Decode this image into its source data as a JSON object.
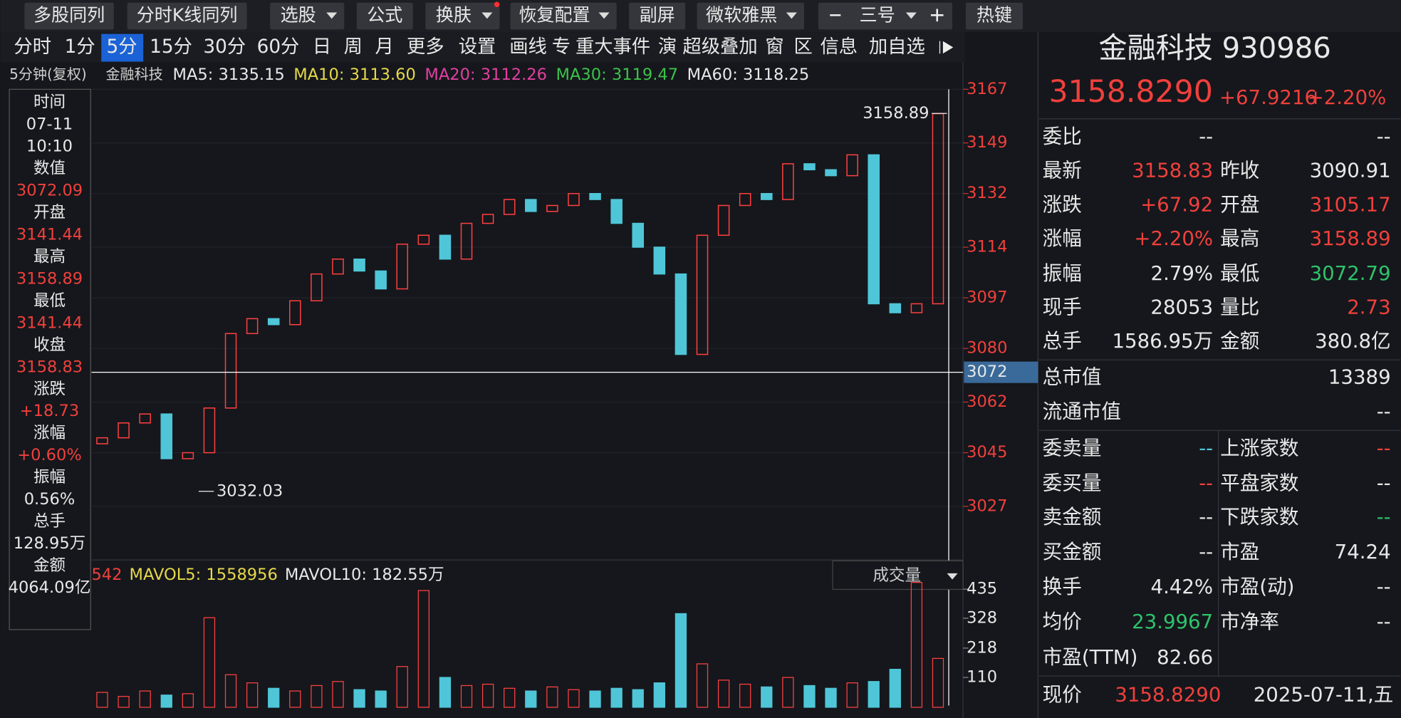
{
  "toolbar": [
    "多股同列",
    "分时K线同列",
    "选股",
    "公式",
    "换肤",
    "恢复配置",
    "副屏",
    "微软雅黑",
    "三号",
    "热键"
  ],
  "tabs": [
    "分时",
    "1分",
    "5分",
    "15分",
    "30分",
    "60分",
    "日",
    "周",
    "月",
    "更多",
    "设置",
    "画线",
    "专",
    "重大事件",
    "演",
    "超级叠加",
    "窗",
    "区",
    "信息",
    "加自选"
  ],
  "ma_header": {
    "period": "5分钟(复权)",
    "name": "金融科技",
    "ma": [
      {
        "text": "MA5: 3135.15",
        "color": "#e8e8e8"
      },
      {
        "text": "MA10: 3113.60",
        "color": "#e6d84a"
      },
      {
        "text": "MA20: 3112.26",
        "color": "#e040a0"
      },
      {
        "text": "MA30: 3119.47",
        "color": "#3cc24a"
      },
      {
        "text": "MA60: 3118.25",
        "color": "#e8e8e8"
      }
    ]
  },
  "info_panel": [
    {
      "text": "时间",
      "color": "#e8e8e8"
    },
    {
      "text": "07-11",
      "color": "#e8e8e8"
    },
    {
      "text": "10:10",
      "color": "#e8e8e8"
    },
    {
      "text": "数值",
      "color": "#e8e8e8"
    },
    {
      "text": "3072.09",
      "color": "#f0403c"
    },
    {
      "text": "开盘",
      "color": "#e8e8e8"
    },
    {
      "text": "3141.44",
      "color": "#f0403c"
    },
    {
      "text": "最高",
      "color": "#e8e8e8"
    },
    {
      "text": "3158.89",
      "color": "#f0403c"
    },
    {
      "text": "最低",
      "color": "#e8e8e8"
    },
    {
      "text": "3141.44",
      "color": "#f0403c"
    },
    {
      "text": "收盘",
      "color": "#e8e8e8"
    },
    {
      "text": "3158.83",
      "color": "#f0403c"
    },
    {
      "text": "涨跌",
      "color": "#e8e8e8"
    },
    {
      "text": "+18.73",
      "color": "#f0403c"
    },
    {
      "text": "涨幅",
      "color": "#e8e8e8"
    },
    {
      "text": "+0.60%",
      "color": "#f0403c"
    },
    {
      "text": "振幅",
      "color": "#e8e8e8"
    },
    {
      "text": "0.56%",
      "color": "#e8e8e8"
    },
    {
      "text": "总手",
      "color": "#e8e8e8"
    },
    {
      "text": "128.95万",
      "color": "#e8e8e8"
    },
    {
      "text": "金额",
      "color": "#e8e8e8"
    },
    {
      "text": "4064.09亿",
      "color": "#e8e8e8"
    }
  ],
  "chart_data": {
    "type": "candlestick",
    "ylim": [
      3009,
      3167
    ],
    "yticks": [
      3167,
      3149,
      3132,
      3114,
      3097,
      3080,
      3062,
      3045,
      3027
    ],
    "open": [
      3048,
      3050,
      3055,
      3058,
      3043,
      3045,
      3060,
      3085,
      3090,
      3088,
      3096,
      3105,
      3110,
      3106,
      3100,
      3115,
      3118,
      3110,
      3122,
      3125,
      3130,
      3126,
      3128,
      3132,
      3130,
      3122,
      3114,
      3105,
      3078,
      3118,
      3128,
      3132,
      3130,
      3142,
      3140,
      3138,
      3145,
      3095,
      3092,
      3095
    ],
    "close": [
      3050,
      3055,
      3058,
      3043,
      3045,
      3060,
      3085,
      3090,
      3088,
      3096,
      3105,
      3110,
      3106,
      3100,
      3115,
      3118,
      3110,
      3122,
      3125,
      3130,
      3126,
      3128,
      3132,
      3130,
      3122,
      3114,
      3105,
      3078,
      3118,
      3128,
      3132,
      3130,
      3142,
      3140,
      3138,
      3145,
      3095,
      3092,
      3095,
      3158.83
    ],
    "up_color": "#ff4040",
    "down_color": "#4fc6d8",
    "crosshair": {
      "value": 3072,
      "label": "3072"
    },
    "annotations": [
      {
        "value": 3158.89,
        "label": "3158.89"
      },
      {
        "value": 3032.03,
        "label": "3032.03"
      }
    ],
    "volume": {
      "header": [
        {
          "text": "542",
          "color": "#f0403c"
        },
        {
          "text": "MAVOL5: 1558956",
          "color": "#e6d84a"
        },
        {
          "text": "MAVOL10: 182.55万",
          "color": "#e8e8e8"
        }
      ],
      "selector": "成交量",
      "ylim": [
        0,
        500
      ],
      "yticks": [
        435,
        328,
        218,
        110
      ],
      "values": [
        55,
        40,
        60,
        45,
        50,
        330,
        120,
        90,
        70,
        60,
        80,
        95,
        65,
        60,
        150,
        430,
        110,
        80,
        85,
        70,
        60,
        75,
        65,
        60,
        70,
        65,
        90,
        345,
        160,
        100,
        85,
        75,
        110,
        80,
        70,
        90,
        95,
        140,
        460,
        180
      ]
    }
  },
  "quote": {
    "title": "金融科技 930986",
    "price": "3158.8290",
    "change": "+67.9216",
    "pct": "+2.20%",
    "rows": [
      [
        {
          "text": "委比",
          "color": "#e8e8e8"
        },
        {
          "text": "--",
          "color": "#e8e8e8"
        },
        null,
        {
          "text": "--",
          "color": "#e8e8e8"
        }
      ],
      [
        {
          "text": "最新",
          "color": "#e8e8e8"
        },
        {
          "text": "3158.83",
          "color": "#f0403c"
        },
        {
          "text": "昨收",
          "color": "#e8e8e8"
        },
        {
          "text": "3090.91",
          "color": "#e8e8e8"
        }
      ],
      [
        {
          "text": "涨跌",
          "color": "#e8e8e8"
        },
        {
          "text": "+67.92",
          "color": "#f0403c"
        },
        {
          "text": "开盘",
          "color": "#e8e8e8"
        },
        {
          "text": "3105.17",
          "color": "#f0403c"
        }
      ],
      [
        {
          "text": "涨幅",
          "color": "#e8e8e8"
        },
        {
          "text": "+2.20%",
          "color": "#f0403c"
        },
        {
          "text": "最高",
          "color": "#e8e8e8"
        },
        {
          "text": "3158.89",
          "color": "#f0403c"
        }
      ],
      [
        {
          "text": "振幅",
          "color": "#e8e8e8"
        },
        {
          "text": "2.79%",
          "color": "#e8e8e8"
        },
        {
          "text": "最低",
          "color": "#e8e8e8"
        },
        {
          "text": "3072.79",
          "color": "#2fc26b"
        }
      ],
      [
        {
          "text": "现手",
          "color": "#e8e8e8"
        },
        {
          "text": "28053",
          "color": "#e8e8e8"
        },
        {
          "text": "量比",
          "color": "#e8e8e8"
        },
        {
          "text": "2.73",
          "color": "#f0403c"
        }
      ],
      [
        {
          "text": "总手",
          "color": "#e8e8e8"
        },
        {
          "text": "1586.95万",
          "color": "#e8e8e8"
        },
        {
          "text": "金额",
          "color": "#e8e8e8"
        },
        {
          "text": "380.8亿",
          "color": "#e8e8e8"
        }
      ],
      [
        {
          "text": "总市值",
          "color": "#e8e8e8"
        },
        null,
        null,
        {
          "text": "13389",
          "color": "#e8e8e8"
        }
      ],
      [
        {
          "text": "流通市值",
          "color": "#e8e8e8"
        },
        null,
        null,
        {
          "text": "--",
          "color": "#e8e8e8"
        }
      ],
      [
        {
          "text": "委卖量",
          "color": "#e8e8e8"
        },
        {
          "text": "--",
          "color": "#4fc6d8"
        },
        {
          "text": "上涨家数",
          "color": "#e8e8e8"
        },
        {
          "text": "--",
          "color": "#f0403c"
        }
      ],
      [
        {
          "text": "委买量",
          "color": "#e8e8e8"
        },
        {
          "text": "--",
          "color": "#f0403c"
        },
        {
          "text": "平盘家数",
          "color": "#e8e8e8"
        },
        {
          "text": "--",
          "color": "#e8e8e8"
        }
      ],
      [
        {
          "text": "卖金额",
          "color": "#e8e8e8"
        },
        {
          "text": "--",
          "color": "#e8e8e8"
        },
        {
          "text": "下跌家数",
          "color": "#e8e8e8"
        },
        {
          "text": "--",
          "color": "#2fc26b"
        }
      ],
      [
        {
          "text": "买金额",
          "color": "#e8e8e8"
        },
        {
          "text": "--",
          "color": "#e8e8e8"
        },
        {
          "text": "市盈",
          "color": "#e8e8e8"
        },
        {
          "text": "74.24",
          "color": "#e8e8e8"
        }
      ],
      [
        {
          "text": "换手",
          "color": "#e8e8e8"
        },
        {
          "text": "4.42%",
          "color": "#e8e8e8"
        },
        {
          "text": "市盈(动)",
          "color": "#e8e8e8"
        },
        {
          "text": "--",
          "color": "#e8e8e8"
        }
      ],
      [
        {
          "text": "均价",
          "color": "#e8e8e8"
        },
        {
          "text": "23.9967",
          "color": "#2fc26b"
        },
        {
          "text": "市净率",
          "color": "#e8e8e8"
        },
        {
          "text": "--",
          "color": "#e8e8e8"
        }
      ],
      [
        {
          "text": "市盈(TTM)",
          "color": "#e8e8e8"
        },
        {
          "text": "82.66",
          "color": "#e8e8e8"
        },
        null,
        null
      ]
    ],
    "footer": [
      {
        "text": "现价",
        "color": "#e8e8e8"
      },
      {
        "text": "3158.8290",
        "color": "#f0403c"
      },
      {
        "text": "2025-07-11,五",
        "color": "#e8e8e8"
      }
    ]
  }
}
